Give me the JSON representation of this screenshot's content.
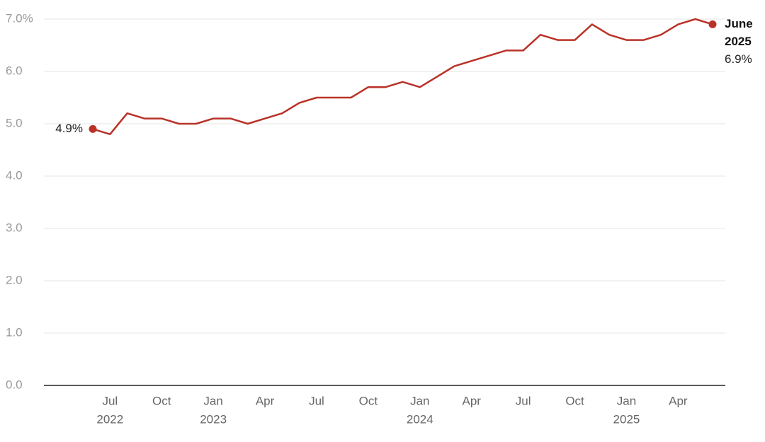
{
  "chart_data": {
    "type": "line",
    "x": [
      "2022-06",
      "2022-07",
      "2022-08",
      "2022-09",
      "2022-10",
      "2022-11",
      "2022-12",
      "2023-01",
      "2023-02",
      "2023-03",
      "2023-04",
      "2023-05",
      "2023-06",
      "2023-07",
      "2023-08",
      "2023-09",
      "2023-10",
      "2023-11",
      "2023-12",
      "2024-01",
      "2024-02",
      "2024-03",
      "2024-04",
      "2024-05",
      "2024-06",
      "2024-07",
      "2024-08",
      "2024-09",
      "2024-10",
      "2024-11",
      "2024-12",
      "2025-01",
      "2025-02",
      "2025-03",
      "2025-04",
      "2025-05",
      "2025-06"
    ],
    "series": [
      {
        "color": "#b93228",
        "values": [
          4.9,
          4.8,
          5.2,
          5.1,
          5.1,
          5.0,
          5.0,
          5.1,
          5.1,
          5.0,
          5.1,
          5.2,
          5.4,
          5.5,
          5.5,
          5.5,
          5.7,
          5.7,
          5.8,
          5.7,
          5.9,
          6.1,
          6.2,
          6.3,
          6.4,
          6.4,
          6.7,
          6.6,
          6.6,
          6.9,
          6.7,
          6.6,
          6.6,
          6.7,
          6.9,
          7.0,
          6.9
        ],
        "value_labels": [
          "4.9%",
          null,
          null,
          null,
          null,
          null,
          null,
          null,
          null,
          null,
          null,
          null,
          null,
          null,
          null,
          null,
          null,
          null,
          null,
          null,
          null,
          null,
          null,
          null,
          null,
          null,
          null,
          null,
          null,
          null,
          null,
          null,
          null,
          null,
          null,
          null,
          "6.9%"
        ]
      }
    ],
    "end_label": [
      "June",
      "2025"
    ],
    "ylim": [
      0,
      7
    ],
    "yticks": [
      {
        "value": 0,
        "label": "0.0"
      },
      {
        "value": 1,
        "label": "1.0"
      },
      {
        "value": 2,
        "label": "2.0"
      },
      {
        "value": 3,
        "label": "3.0"
      },
      {
        "value": 4,
        "label": "4.0"
      },
      {
        "value": 5,
        "label": "5.0"
      },
      {
        "value": 6,
        "label": "6.0"
      },
      {
        "value": 7,
        "label": "7.0%"
      }
    ],
    "xticks": [
      {
        "value": "2022-07",
        "label": "Jul",
        "year": "2022"
      },
      {
        "value": "2022-10",
        "label": "Oct"
      },
      {
        "value": "2023-01",
        "label": "Jan",
        "year": "2023"
      },
      {
        "value": "2023-04",
        "label": "Apr"
      },
      {
        "value": "2023-07",
        "label": "Jul"
      },
      {
        "value": "2023-10",
        "label": "Oct"
      },
      {
        "value": "2024-01",
        "label": "Jan",
        "year": "2024"
      },
      {
        "value": "2024-04",
        "label": "Apr"
      },
      {
        "value": "2024-07",
        "label": "Jul"
      },
      {
        "value": "2024-10",
        "label": "Oct"
      },
      {
        "value": "2025-01",
        "label": "Jan",
        "year": "2025"
      },
      {
        "value": "2025-04",
        "label": "Apr"
      }
    ],
    "grid": true
  }
}
